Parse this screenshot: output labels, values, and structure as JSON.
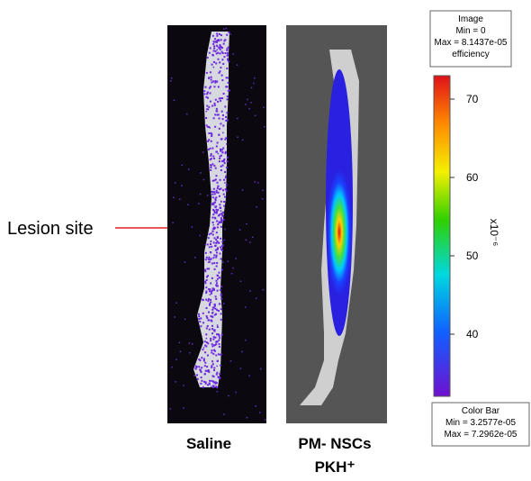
{
  "annotation": "Lesion site",
  "panels": [
    {
      "label": "Saline"
    },
    {
      "label": "PM- NSCs",
      "sublabel": "PKH⁺"
    }
  ],
  "image_box": {
    "title": "Image",
    "min": "Min = 0",
    "max": "Max = 8.1437e-05",
    "unit": "efficiency"
  },
  "color_bar": {
    "ticks": [
      "70",
      "60",
      "50",
      "40"
    ],
    "exponent": "x10⁻⁶",
    "title": "Color Bar",
    "min": "Min = 3.2577e-05",
    "max": "Max = 7.2962e-05"
  }
}
